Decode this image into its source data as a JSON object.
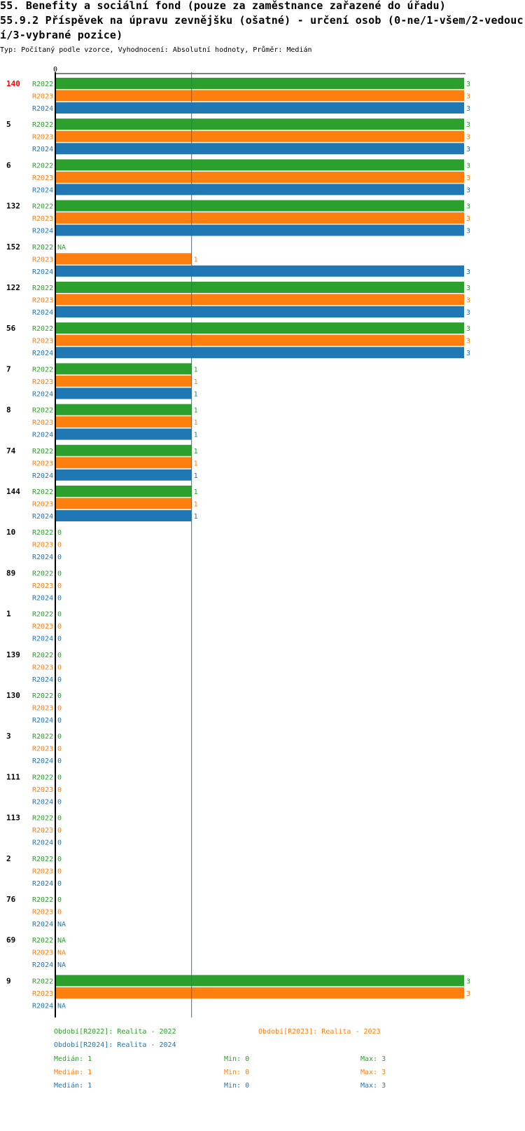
{
  "title_line1": "55. Benefity a sociální fond (pouze za zaměstnance zařazené do úřadu)",
  "title_line2": "55.9.2 Příspěvek na úpravu zevnějšku (ošatné) - určení osob (0-ne/1-všem/2-vedouc",
  "title_line3": "í/3-vybrané pozice)",
  "subtitle": "Typ: Počítaný podle vzorce, Vyhodnocení: Absolutní hodnoty, Průměr: Medián",
  "colors": {
    "R2022": "#2ca02c",
    "R2023": "#ff7f0e",
    "R2024": "#1f77b4",
    "highlight": "#ff0000",
    "median_line": "#1f77b4"
  },
  "chart_data": {
    "type": "bar",
    "orientation": "horizontal",
    "x_min": 0,
    "x_max": 3,
    "x_tick_label": "0",
    "median_value": 1,
    "series_names": [
      "R2022",
      "R2023",
      "R2024"
    ],
    "groups": [
      {
        "label": "140",
        "highlight": true,
        "values": [
          3,
          3,
          3
        ],
        "labels": [
          "3",
          "3",
          "3"
        ]
      },
      {
        "label": "5",
        "values": [
          3,
          3,
          3
        ],
        "labels": [
          "3",
          "3",
          "3"
        ]
      },
      {
        "label": "6",
        "values": [
          3,
          3,
          3
        ],
        "labels": [
          "3",
          "3",
          "3"
        ]
      },
      {
        "label": "132",
        "values": [
          3,
          3,
          3
        ],
        "labels": [
          "3",
          "3",
          "3"
        ]
      },
      {
        "label": "152",
        "values": [
          null,
          1,
          3
        ],
        "labels": [
          "NA",
          "1",
          "3"
        ]
      },
      {
        "label": "122",
        "values": [
          3,
          3,
          3
        ],
        "labels": [
          "3",
          "3",
          "3"
        ]
      },
      {
        "label": "56",
        "values": [
          3,
          3,
          3
        ],
        "labels": [
          "3",
          "3",
          "3"
        ]
      },
      {
        "label": "7",
        "values": [
          1,
          1,
          1
        ],
        "labels": [
          "1",
          "1",
          "1"
        ]
      },
      {
        "label": "8",
        "values": [
          1,
          1,
          1
        ],
        "labels": [
          "1",
          "1",
          "1"
        ]
      },
      {
        "label": "74",
        "values": [
          1,
          1,
          1
        ],
        "labels": [
          "1",
          "1",
          "1"
        ]
      },
      {
        "label": "144",
        "values": [
          1,
          1,
          1
        ],
        "labels": [
          "1",
          "1",
          "1"
        ]
      },
      {
        "label": "10",
        "values": [
          0,
          0,
          0
        ],
        "labels": [
          "0",
          "0",
          "0"
        ]
      },
      {
        "label": "89",
        "values": [
          0,
          0,
          0
        ],
        "labels": [
          "0",
          "0",
          "0"
        ]
      },
      {
        "label": "1",
        "values": [
          0,
          0,
          0
        ],
        "labels": [
          "0",
          "0",
          "0"
        ]
      },
      {
        "label": "139",
        "values": [
          0,
          0,
          0
        ],
        "labels": [
          "0",
          "0",
          "0"
        ]
      },
      {
        "label": "130",
        "values": [
          0,
          0,
          0
        ],
        "labels": [
          "0",
          "0",
          "0"
        ]
      },
      {
        "label": "3",
        "values": [
          0,
          0,
          0
        ],
        "labels": [
          "0",
          "0",
          "0"
        ]
      },
      {
        "label": "111",
        "values": [
          0,
          0,
          0
        ],
        "labels": [
          "0",
          "0",
          "0"
        ]
      },
      {
        "label": "113",
        "values": [
          0,
          0,
          0
        ],
        "labels": [
          "0",
          "0",
          "0"
        ]
      },
      {
        "label": "2",
        "values": [
          0,
          0,
          0
        ],
        "labels": [
          "0",
          "0",
          "0"
        ]
      },
      {
        "label": "76",
        "values": [
          0,
          0,
          null
        ],
        "labels": [
          "0",
          "0",
          "NA"
        ]
      },
      {
        "label": "69",
        "values": [
          null,
          null,
          null
        ],
        "labels": [
          "NA",
          "NA",
          "NA"
        ]
      },
      {
        "label": "9",
        "values": [
          3,
          3,
          null
        ],
        "labels": [
          "3",
          "3",
          "NA"
        ]
      }
    ]
  },
  "legend": {
    "periods": [
      {
        "series": "R2022",
        "text": "Období[R2022]: Realita - 2022"
      },
      {
        "series": "R2023",
        "text": "Období[R2023]: Realita - 2023"
      },
      {
        "series": "R2024",
        "text": "Období[R2024]: Realita - 2024"
      }
    ],
    "stats": [
      {
        "series": "R2022",
        "median": "Medián: 1",
        "min": "Min: 0",
        "max": "Max: 3"
      },
      {
        "series": "R2023",
        "median": "Medián: 1",
        "min": "Min: 0",
        "max": "Max: 3"
      },
      {
        "series": "R2024",
        "median": "Medián: 1",
        "min": "Min: 0",
        "max": "Max: 3"
      }
    ]
  }
}
